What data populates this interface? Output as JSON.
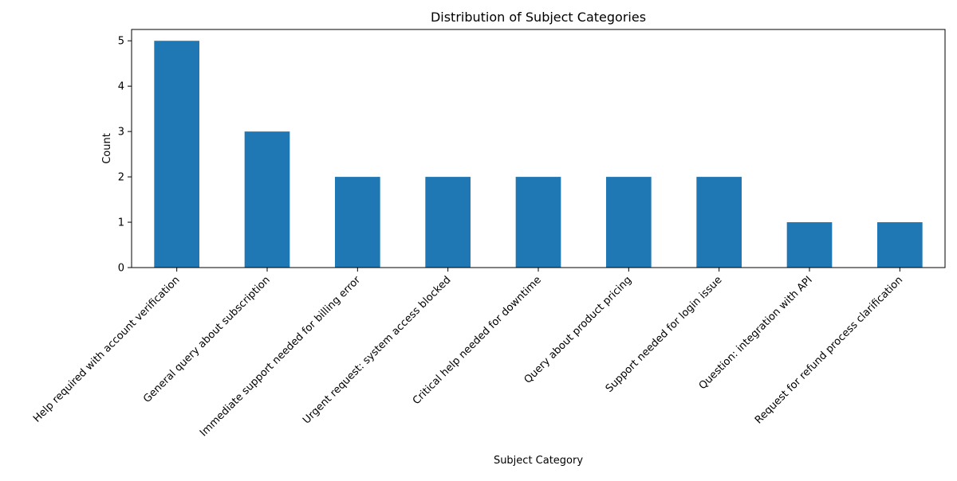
{
  "chart_data": {
    "type": "bar",
    "title": "Distribution of Subject Categories",
    "xlabel": "Subject Category",
    "ylabel": "Count",
    "categories": [
      "Help required with account verification",
      "General query about subscription",
      "Immediate support needed for billing error",
      "Urgent request: system access blocked",
      "Critical help needed for downtime",
      "Query about product pricing",
      "Support needed for login issue",
      "Question: integration with API",
      "Request for refund process clarification"
    ],
    "values": [
      5,
      3,
      2,
      2,
      2,
      2,
      2,
      1,
      1
    ],
    "ylim": [
      0,
      5.25
    ],
    "yticks": [
      0,
      1,
      2,
      3,
      4,
      5
    ],
    "bar_color": "#1f77b4",
    "grid": false,
    "legend": "none"
  }
}
